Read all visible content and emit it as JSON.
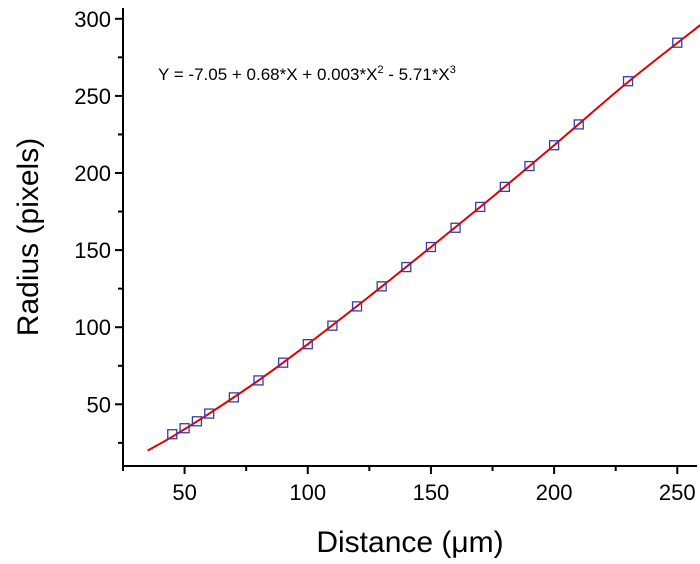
{
  "chart_data": {
    "type": "scatter",
    "title": "",
    "xlabel": "Distance (μm)",
    "ylabel": "Radius (pixels)",
    "xlim": [
      25,
      258
    ],
    "ylim": [
      10,
      307
    ],
    "xticks": [
      50,
      100,
      150,
      200,
      250
    ],
    "yticks": [
      50,
      100,
      150,
      200,
      250,
      300
    ],
    "grid": false,
    "annotation": {
      "base": "Y = -7.05 + 0.68*X + 0.003*X",
      "sup1": "2",
      "mid": " - 5.71*X",
      "sup2": "3"
    },
    "series": [
      {
        "type": "scatter",
        "marker": "open-square",
        "color": "#3a3aa8",
        "x": [
          45,
          50,
          55,
          60,
          70,
          80,
          90,
          100,
          110,
          120,
          130,
          140,
          150,
          160,
          170,
          180,
          190,
          200,
          210,
          230,
          250
        ],
        "y": [
          30.6,
          34.5,
          39,
          44,
          54.5,
          65.5,
          77,
          89,
          101,
          113.5,
          126.5,
          139,
          152,
          164.5,
          178,
          191,
          204.5,
          218,
          231.5,
          259.5,
          284.5
        ]
      },
      {
        "type": "line",
        "color": "#e00000",
        "x": [
          35,
          45,
          60,
          80,
          100,
          125,
          150,
          175,
          200,
          230,
          261
        ],
        "y": [
          20,
          29,
          44,
          65.5,
          89,
          120,
          152,
          184.5,
          218,
          259,
          298
        ]
      }
    ]
  }
}
